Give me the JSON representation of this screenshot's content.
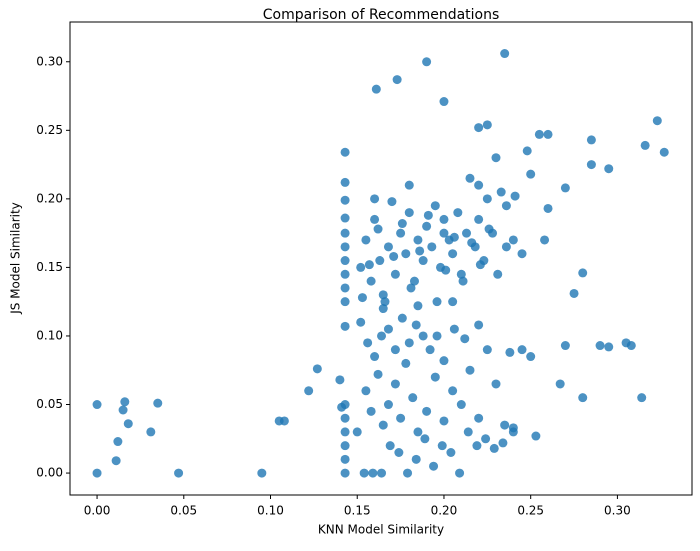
{
  "chart_data": {
    "type": "scatter",
    "title": "Comparison of Recommendations",
    "xlabel": "KNN Model Similarity",
    "ylabel": "JS Model Similarity",
    "color": "#1f77b4",
    "xlim": [
      -0.0156,
      0.343
    ],
    "ylim": [
      -0.016,
      0.329
    ],
    "xticks": [
      {
        "value": 0,
        "label": "0.00"
      },
      {
        "value": 0.05,
        "label": "0.05"
      },
      {
        "value": 0.1,
        "label": "0.10"
      },
      {
        "value": 0.15,
        "label": "0.15"
      },
      {
        "value": 0.2,
        "label": "0.20"
      },
      {
        "value": 0.25,
        "label": "0.25"
      },
      {
        "value": 0.3,
        "label": "0.30"
      }
    ],
    "yticks": [
      {
        "value": 0,
        "label": "0.00"
      },
      {
        "value": 0.05,
        "label": "0.05"
      },
      {
        "value": 0.1,
        "label": "0.10"
      },
      {
        "value": 0.15,
        "label": "0.15"
      },
      {
        "value": 0.2,
        "label": "0.20"
      },
      {
        "value": 0.25,
        "label": "0.25"
      },
      {
        "value": 0.3,
        "label": "0.30"
      }
    ],
    "x": [
      0,
      0,
      0.011,
      0.012,
      0.015,
      0.016,
      0.018,
      0.031,
      0.035,
      0.047,
      0.095,
      0.105,
      0.108,
      0.122,
      0.127,
      0.14,
      0.141,
      0.143,
      0.143,
      0.143,
      0.143,
      0.143,
      0.143,
      0.143,
      0.143,
      0.143,
      0.143,
      0.143,
      0.143,
      0.143,
      0.143,
      0.143,
      0.143,
      0.143,
      0.161,
      0.173,
      0.19,
      0.2,
      0.235,
      0.225,
      0.22,
      0.255,
      0.26,
      0.285,
      0.316,
      0.323,
      0.327,
      0.295,
      0.285,
      0.27,
      0.26,
      0.258,
      0.28,
      0.275,
      0.27,
      0.29,
      0.295,
      0.305,
      0.308,
      0.314,
      0.28,
      0.267,
      0.253,
      0.24,
      0.235,
      0.152,
      0.155,
      0.158,
      0.16,
      0.163,
      0.165,
      0.168,
      0.17,
      0.172,
      0.175,
      0.178,
      0.18,
      0.183,
      0.185,
      0.188,
      0.19,
      0.193,
      0.195,
      0.198,
      0.2,
      0.203,
      0.205,
      0.208,
      0.21,
      0.213,
      0.215,
      0.218,
      0.22,
      0.223,
      0.225,
      0.228,
      0.23,
      0.233,
      0.236,
      0.24,
      0.245,
      0.25,
      0.153,
      0.157,
      0.162,
      0.166,
      0.171,
      0.176,
      0.181,
      0.186,
      0.191,
      0.196,
      0.201,
      0.206,
      0.211,
      0.216,
      0.221,
      0.226,
      0.231,
      0.236,
      0.241,
      0.248,
      0.16,
      0.18,
      0.2,
      0.22,
      0.15,
      0.155,
      0.158,
      0.162,
      0.165,
      0.168,
      0.172,
      0.175,
      0.178,
      0.182,
      0.185,
      0.19,
      0.195,
      0.2,
      0.205,
      0.21,
      0.215,
      0.22,
      0.225,
      0.23,
      0.238,
      0.245,
      0.25,
      0.154,
      0.159,
      0.164,
      0.169,
      0.174,
      0.179,
      0.184,
      0.189,
      0.194,
      0.199,
      0.204,
      0.209,
      0.214,
      0.219,
      0.224,
      0.229,
      0.234,
      0.24,
      0.152,
      0.156,
      0.16,
      0.164,
      0.168,
      0.172,
      0.176,
      0.18,
      0.184,
      0.188,
      0.192,
      0.196,
      0.2,
      0.206,
      0.212,
      0.22,
      0.165,
      0.185,
      0.205
    ],
    "values": [
      0,
      0.05,
      0.009,
      0.023,
      0.046,
      0.052,
      0.036,
      0.03,
      0.051,
      0,
      0,
      0.038,
      0.038,
      0.06,
      0.076,
      0.068,
      0.048,
      0,
      0.01,
      0.02,
      0.03,
      0.04,
      0.05,
      0.107,
      0.125,
      0.135,
      0.145,
      0.155,
      0.165,
      0.175,
      0.186,
      0.199,
      0.212,
      0.234,
      0.28,
      0.287,
      0.3,
      0.271,
      0.306,
      0.254,
      0.252,
      0.247,
      0.247,
      0.243,
      0.239,
      0.257,
      0.234,
      0.222,
      0.225,
      0.208,
      0.193,
      0.17,
      0.146,
      0.131,
      0.093,
      0.093,
      0.092,
      0.095,
      0.093,
      0.055,
      0.055,
      0.065,
      0.027,
      0.033,
      0.035,
      0.15,
      0.17,
      0.14,
      0.185,
      0.155,
      0.13,
      0.165,
      0.198,
      0.145,
      0.175,
      0.16,
      0.19,
      0.14,
      0.17,
      0.155,
      0.18,
      0.165,
      0.195,
      0.15,
      0.185,
      0.17,
      0.16,
      0.19,
      0.145,
      0.175,
      0.215,
      0.165,
      0.185,
      0.155,
      0.2,
      0.175,
      0.23,
      0.205,
      0.195,
      0.17,
      0.16,
      0.218,
      0.128,
      0.152,
      0.178,
      0.125,
      0.158,
      0.182,
      0.135,
      0.162,
      0.188,
      0.125,
      0.148,
      0.172,
      0.14,
      0.168,
      0.152,
      0.178,
      0.145,
      0.165,
      0.202,
      0.235,
      0.2,
      0.21,
      0.175,
      0.21,
      0.03,
      0.06,
      0.045,
      0.072,
      0.035,
      0.05,
      0.065,
      0.04,
      0.08,
      0.055,
      0.03,
      0.045,
      0.07,
      0.038,
      0.06,
      0.05,
      0.075,
      0.04,
      0.09,
      0.065,
      0.088,
      0.09,
      0.085,
      0,
      0,
      0,
      0.02,
      0.015,
      0,
      0.01,
      0.025,
      0.005,
      0.02,
      0.015,
      0,
      0.03,
      0.02,
      0.025,
      0.018,
      0.022,
      0.03,
      0.11,
      0.095,
      0.085,
      0.1,
      0.105,
      0.09,
      0.113,
      0.095,
      0.108,
      0.1,
      0.09,
      0.1,
      0.082,
      0.105,
      0.098,
      0.108,
      0.12,
      0.122,
      0.125
    ]
  }
}
